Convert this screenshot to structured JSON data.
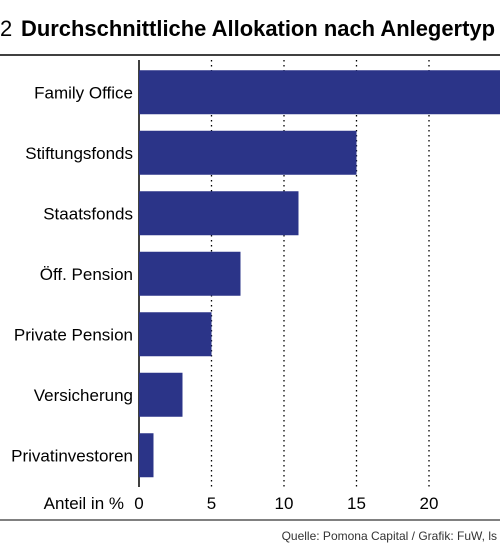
{
  "chart_data": {
    "type": "bar",
    "orientation": "horizontal",
    "figure_number": "2",
    "title": "Durchschnittliche Allokation nach Anlegertyp",
    "xlabel": "Anteil in %",
    "categories": [
      "Family Office",
      "Stiftungsfonds",
      "Staatsfonds",
      "Öff. Pension",
      "Private Pension",
      "Versicherung",
      "Privatinvestoren"
    ],
    "values": [
      25,
      15,
      11,
      7,
      5,
      3,
      1
    ],
    "xlim": [
      0,
      25
    ],
    "xticks": [
      0,
      5,
      10,
      15,
      20
    ],
    "grid": "vertical dotted",
    "bar_color": "#2b3488",
    "source": "Quelle: Pomona Capital / Grafik: FuW, ls"
  }
}
